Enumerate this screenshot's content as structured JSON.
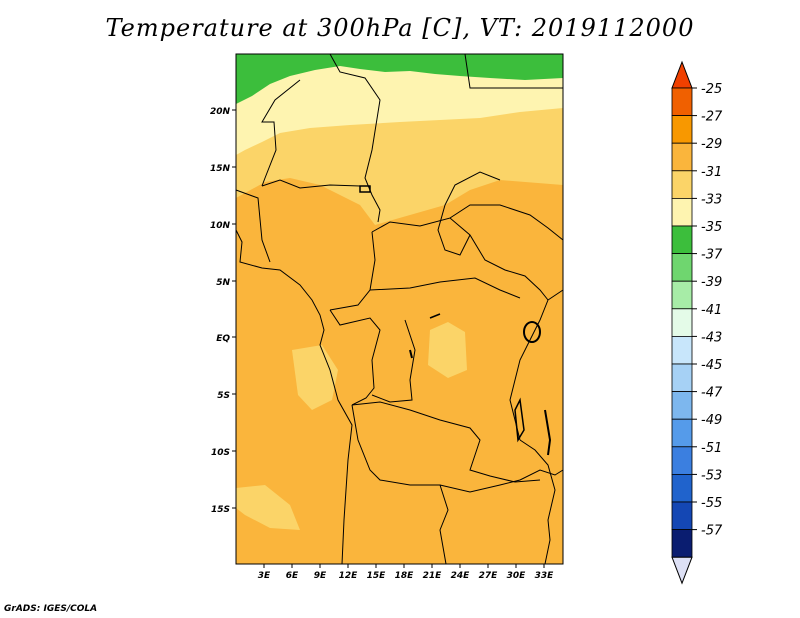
{
  "title": "Temperature at 300hPa [C], VT: 2019112000",
  "credit": "GrADS: IGES/COLA",
  "map": {
    "lat_labels": [
      "20N",
      "15N",
      "10N",
      "5N",
      "EQ",
      "5S",
      "10S",
      "15S"
    ],
    "lon_labels": [
      "3E",
      "6E",
      "9E",
      "12E",
      "15E",
      "18E",
      "21E",
      "24E",
      "27E",
      "30E",
      "33E"
    ]
  },
  "colorbar": {
    "labels": [
      "-25",
      "-27",
      "-29",
      "-31",
      "-33",
      "-35",
      "-37",
      "-39",
      "-41",
      "-43",
      "-45",
      "-47",
      "-49",
      "-51",
      "-53",
      "-55",
      "-57"
    ],
    "colors": {
      "top_triangle": "#f04000",
      "bins": [
        "#f06000",
        "#f89800",
        "#fab53c",
        "#fbd468",
        "#fef4b0",
        "#3cbe3c",
        "#6fd66f",
        "#a7eca7",
        "#e4fbe8",
        "#c8e6fb",
        "#a6d1f5",
        "#7db7ee",
        "#559bea",
        "#3b7fe0",
        "#2063cc",
        "#1447b4",
        "#0a1d70"
      ],
      "bottom_triangle": "#dde0f5"
    }
  }
}
